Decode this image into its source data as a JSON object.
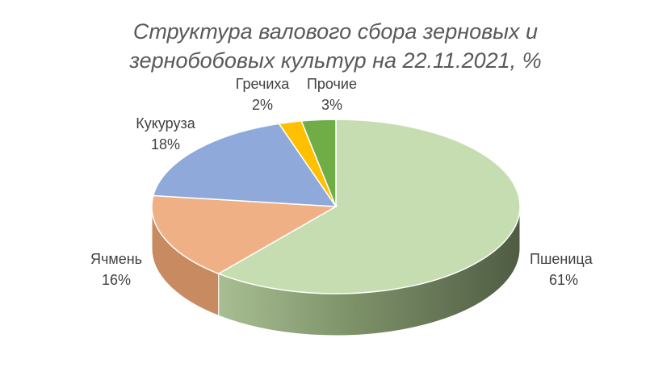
{
  "chart_data": {
    "type": "pie",
    "title_line1": "Структура валового сбора зерновых и",
    "title_line2": "зернобобовых культур на 22.11.2021, %",
    "categories": [
      "Пшеница",
      "Ячмень",
      "Кукуруза",
      "Гречиха",
      "Прочие"
    ],
    "values": [
      61,
      16,
      18,
      2,
      3
    ],
    "labels": [
      "61%",
      "16%",
      "18%",
      "2%",
      "3%"
    ],
    "colors": [
      "#C5DDB0",
      "#F0B085",
      "#8EA9DA",
      "#FFC000",
      "#70AD47"
    ],
    "side_colors": [
      "#6E7F5C",
      "#C88A60",
      "#5A73A3",
      "#C09000",
      "#4E7F2E"
    ],
    "style": "3d-pie",
    "data_labels": "outside-category-and-percent"
  }
}
